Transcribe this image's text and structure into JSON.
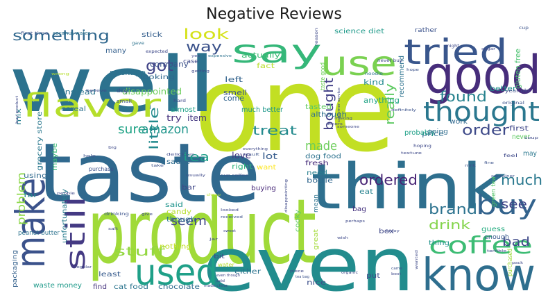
{
  "chart_data": {
    "type": "wordcloud",
    "title": "Negative Reviews",
    "colormap": "viridis",
    "background": "#ffffff",
    "words": [
      {
        "text": "product",
        "weight": 100,
        "color": "#a0da39"
      },
      {
        "text": "taste",
        "weight": 98,
        "color": "#30698e"
      },
      {
        "text": "one",
        "weight": 96,
        "color": "#c2df23"
      },
      {
        "text": "well",
        "weight": 95,
        "color": "#2c728e"
      },
      {
        "text": "think",
        "weight": 90,
        "color": "#2e6f8e"
      },
      {
        "text": "even",
        "weight": 85,
        "color": "#228c8d"
      },
      {
        "text": "good",
        "weight": 70,
        "color": "#472d7b"
      },
      {
        "text": "know",
        "weight": 58,
        "color": "#2e6e8e"
      },
      {
        "text": "make",
        "weight": 55,
        "color": "#3b528b"
      },
      {
        "text": "used",
        "weight": 52,
        "color": "#1fa088"
      },
      {
        "text": "tried",
        "weight": 50,
        "color": "#39568c"
      },
      {
        "text": "use",
        "weight": 50,
        "color": "#7ad151"
      },
      {
        "text": "say",
        "weight": 48,
        "color": "#35b779"
      },
      {
        "text": "flavor",
        "weight": 48,
        "color": "#b5de2b"
      },
      {
        "text": "thought",
        "weight": 42,
        "color": "#2a778e"
      },
      {
        "text": "still",
        "weight": 40,
        "color": "#443a83"
      },
      {
        "text": "buy",
        "weight": 38,
        "color": "#33638d"
      },
      {
        "text": "coffee",
        "weight": 36,
        "color": "#3dbc74"
      },
      {
        "text": "something",
        "weight": 24,
        "color": "#31688e"
      },
      {
        "text": "look",
        "weight": 24,
        "color": "#d5e21a"
      },
      {
        "text": "way",
        "weight": 22,
        "color": "#3b528b"
      },
      {
        "text": "got",
        "weight": 22,
        "color": "#414487"
      },
      {
        "text": "found",
        "weight": 22,
        "color": "#26828e"
      },
      {
        "text": "sure",
        "weight": 21,
        "color": "#20a386"
      },
      {
        "text": "amazon",
        "weight": 21,
        "color": "#1f958b"
      },
      {
        "text": "tea",
        "weight": 21,
        "color": "#1f9e89"
      },
      {
        "text": "treat",
        "weight": 21,
        "color": "#238a8d"
      },
      {
        "text": "order",
        "weight": 21,
        "color": "#3e4a89"
      },
      {
        "text": "bought",
        "weight": 20,
        "color": "#424086"
      },
      {
        "text": "made",
        "weight": 20,
        "color": "#6ccd5a"
      },
      {
        "text": "really",
        "weight": 20,
        "color": "#5ec962"
      },
      {
        "text": "ordered",
        "weight": 20,
        "color": "#482475"
      },
      {
        "text": "much",
        "weight": 20,
        "color": "#29788e"
      },
      {
        "text": "little",
        "weight": 20,
        "color": "#238a8d"
      },
      {
        "text": "seem",
        "weight": 19,
        "color": "#404688"
      },
      {
        "text": "brand",
        "weight": 19,
        "color": "#2c728e"
      },
      {
        "text": "see",
        "weight": 19,
        "color": "#404688"
      },
      {
        "text": "drink",
        "weight": 18,
        "color": "#84d44b"
      },
      {
        "text": "stuff",
        "weight": 18,
        "color": "#93d741"
      },
      {
        "text": "bad",
        "weight": 18,
        "color": "#3e4989"
      },
      {
        "text": "problem",
        "weight": 16,
        "color": "#8bd646"
      },
      {
        "text": "love",
        "weight": 13,
        "color": "#453882"
      },
      {
        "text": "lot",
        "weight": 12,
        "color": "#365c8d"
      },
      {
        "text": "disappointed",
        "weight": 12,
        "color": "#6ccd5a"
      },
      {
        "text": "item",
        "weight": 12,
        "color": "#453882"
      },
      {
        "text": "try",
        "weight": 12,
        "color": "#46327e"
      },
      {
        "text": "company",
        "weight": 11,
        "color": "#3b528b"
      },
      {
        "text": "package",
        "weight": 11,
        "color": "#2d718e"
      },
      {
        "text": "instead",
        "weight": 11,
        "color": "#2b758e"
      },
      {
        "text": "actually",
        "weight": 11,
        "color": "#3dbc74"
      },
      {
        "text": "left",
        "weight": 11,
        "color": "#33638d"
      },
      {
        "text": "smell",
        "weight": 11,
        "color": "#3b528b"
      },
      {
        "text": "come",
        "weight": 11,
        "color": "#32648e"
      },
      {
        "text": "fact",
        "weight": 10,
        "color": "#b8de29"
      },
      {
        "text": "anything",
        "weight": 11,
        "color": "#20a386"
      },
      {
        "text": "kind",
        "weight": 11,
        "color": "#23898e"
      },
      {
        "text": "recommend",
        "weight": 10,
        "color": "#2c728e"
      },
      {
        "text": "better",
        "weight": 10,
        "color": "#20928c"
      },
      {
        "text": "gluten free",
        "weight": 11,
        "color": "#48c16e"
      },
      {
        "text": "science diet",
        "weight": 10,
        "color": "#1f9a8a"
      },
      {
        "text": "rather",
        "weight": 9,
        "color": "#3b528b"
      },
      {
        "text": "stick",
        "weight": 10,
        "color": "#355f8d"
      },
      {
        "text": "many",
        "weight": 10,
        "color": "#34608d"
      },
      {
        "text": "looking",
        "weight": 10,
        "color": "#31688e"
      },
      {
        "text": "case",
        "weight": 9,
        "color": "#3e4a89"
      },
      {
        "text": "much better",
        "weight": 10,
        "color": "#1f988b"
      },
      {
        "text": "taste good",
        "weight": 9,
        "color": "#6ece58"
      },
      {
        "text": "grocery store",
        "weight": 10,
        "color": "#2a788e"
      },
      {
        "text": "cereal",
        "weight": 10,
        "color": "#2d708e"
      },
      {
        "text": "almost",
        "weight": 10,
        "color": "#1fa187"
      },
      {
        "text": "mix",
        "weight": 10,
        "color": "#277f8e"
      },
      {
        "text": "maybe",
        "weight": 10,
        "color": "#3aba76"
      },
      {
        "text": "using",
        "weight": 10,
        "color": "#306a8e"
      },
      {
        "text": "far",
        "weight": 10,
        "color": "#23898e"
      },
      {
        "text": "unfortunately",
        "weight": 10,
        "color": "#287d8e"
      },
      {
        "text": "though",
        "weight": 10,
        "color": "#2a768e"
      },
      {
        "text": "said",
        "weight": 10,
        "color": "#1f948c"
      },
      {
        "text": "candy",
        "weight": 10,
        "color": "#b5de2b"
      },
      {
        "text": "nothing",
        "weight": 10,
        "color": "#c0df25"
      },
      {
        "text": "sauce",
        "weight": 10,
        "color": "#2f6b8e"
      },
      {
        "text": "right",
        "weight": 10,
        "color": "#2fb47c"
      },
      {
        "text": "want",
        "weight": 10,
        "color": "#fde725"
      },
      {
        "text": "bar",
        "weight": 10,
        "color": "#3f4788"
      },
      {
        "text": "buying",
        "weight": 10,
        "color": "#482979"
      },
      {
        "text": "dog food",
        "weight": 10,
        "color": "#2c728e"
      },
      {
        "text": "tasted",
        "weight": 10,
        "color": "#5ec962"
      },
      {
        "text": "although",
        "weight": 10,
        "color": "#2e6f8e"
      },
      {
        "text": "fresh",
        "weight": 10,
        "color": "#472c7a"
      },
      {
        "text": "need",
        "weight": 10,
        "color": "#277f8e"
      },
      {
        "text": "bottle",
        "weight": 10,
        "color": "#31678e"
      },
      {
        "text": "cooky",
        "weight": 10,
        "color": "#5ec962"
      },
      {
        "text": "mean",
        "weight": 9,
        "color": "#2c728e"
      },
      {
        "text": "eat",
        "weight": 10,
        "color": "#26828e"
      },
      {
        "text": "bag",
        "weight": 10,
        "color": "#46337f"
      },
      {
        "text": "box",
        "weight": 10,
        "color": "#3f4788"
      },
      {
        "text": "great",
        "weight": 9,
        "color": "#a2da37"
      },
      {
        "text": "thing",
        "weight": 10,
        "color": "#20928c"
      },
      {
        "text": "guess",
        "weight": 10,
        "color": "#26ad81"
      },
      {
        "text": "enough",
        "weight": 9,
        "color": "#375a8c"
      },
      {
        "text": "purchased",
        "weight": 9,
        "color": "#9dd93b"
      },
      {
        "text": "work",
        "weight": 10,
        "color": "#31688e"
      },
      {
        "text": "price",
        "weight": 10,
        "color": "#2e6e8e"
      },
      {
        "text": "probably",
        "weight": 10,
        "color": "#1fa088"
      },
      {
        "text": "first",
        "weight": 10,
        "color": "#3f4788"
      },
      {
        "text": "never",
        "weight": 10,
        "color": "#5ec962"
      },
      {
        "text": "may",
        "weight": 10,
        "color": "#2a778e"
      },
      {
        "text": "green tea",
        "weight": 9,
        "color": "#52c569"
      },
      {
        "text": "going",
        "weight": 9,
        "color": "#2f6c8e"
      },
      {
        "text": "either",
        "weight": 10,
        "color": "#2c728e"
      },
      {
        "text": "put",
        "weight": 10,
        "color": "#3e4c8a"
      },
      {
        "text": "nice",
        "weight": 10,
        "color": "#3c508b"
      },
      {
        "text": "least",
        "weight": 10,
        "color": "#375b8d"
      },
      {
        "text": "waste money",
        "weight": 10,
        "color": "#1f9a8a"
      },
      {
        "text": "find",
        "weight": 10,
        "color": "#46327e"
      },
      {
        "text": "cat food",
        "weight": 10,
        "color": "#2b748e"
      },
      {
        "text": "chocolate",
        "weight": 10,
        "color": "#2f6c8e"
      },
      {
        "text": "bit",
        "weight": 9,
        "color": "#3e4a89"
      },
      {
        "text": "packaging",
        "weight": 9,
        "color": "#34618d"
      },
      {
        "text": "peanut butter",
        "weight": 8,
        "color": "#2c728e"
      },
      {
        "text": "purchase",
        "weight": 8,
        "color": "#3b528b"
      },
      {
        "text": "water",
        "weight": 8,
        "color": "#b5de2b"
      },
      {
        "text": "dog",
        "weight": 7,
        "color": "#3e4989"
      },
      {
        "text": "coconut water",
        "weight": 7,
        "color": "#2c728e"
      },
      {
        "text": "first time",
        "weight": 6,
        "color": "#3b528b"
      },
      {
        "text": "gave",
        "weight": 6,
        "color": "#2c728e"
      },
      {
        "text": "small",
        "weight": 7,
        "color": "#3b528b"
      },
      {
        "text": "expected",
        "weight": 6,
        "color": "#3e4989"
      },
      {
        "text": "yes",
        "weight": 5,
        "color": "#3e4989"
      },
      {
        "text": "expensive",
        "weight": 5,
        "color": "#2c728e"
      },
      {
        "text": "getting",
        "weight": 5,
        "color": "#3e4989"
      },
      {
        "text": "noodle",
        "weight": 6,
        "color": "#2c728e"
      },
      {
        "text": "reason",
        "weight": 6,
        "color": "#3e4989"
      },
      {
        "text": "cup",
        "weight": 6,
        "color": "#3b528b"
      },
      {
        "text": "might",
        "weight": 6,
        "color": "#3e4989"
      },
      {
        "text": "hope",
        "weight": 5,
        "color": "#3b528b"
      },
      {
        "text": "never buy",
        "weight": 6,
        "color": "#3e4989"
      },
      {
        "text": "year old",
        "weight": 7,
        "color": "#3e4989"
      },
      {
        "text": "original",
        "weight": 6,
        "color": "#3b528b"
      },
      {
        "text": "believe",
        "weight": 5,
        "color": "#3e4989"
      },
      {
        "text": "wrong",
        "weight": 5,
        "color": "#b5de2b"
      },
      {
        "text": "hard",
        "weight": 6,
        "color": "#3e4989"
      },
      {
        "text": "delicious",
        "weight": 5,
        "color": "#3e4989"
      },
      {
        "text": "customer service",
        "weight": 5,
        "color": "#3e4989"
      },
      {
        "text": "definitely",
        "weight": 5,
        "color": "#3b528b"
      },
      {
        "text": "others",
        "weight": 5,
        "color": "#3e4989"
      },
      {
        "text": "making",
        "weight": 5,
        "color": "#3b528b"
      },
      {
        "text": "someone",
        "weight": 5,
        "color": "#3e4989"
      },
      {
        "text": "hoping",
        "weight": 6,
        "color": "#3e4989"
      },
      {
        "text": "feel",
        "weight": 6,
        "color": "#3e4989"
      },
      {
        "text": "milk",
        "weight": 5,
        "color": "#3b528b"
      },
      {
        "text": "fine",
        "weight": 5,
        "color": "#3b528b"
      },
      {
        "text": "texture",
        "weight": 5,
        "color": "#3e4989"
      },
      {
        "text": "big",
        "weight": 5,
        "color": "#3e4989"
      },
      {
        "text": "help",
        "weight": 5,
        "color": "#3b528b"
      },
      {
        "text": "take",
        "weight": 5,
        "color": "#3b528b"
      },
      {
        "text": "usually",
        "weight": 5,
        "color": "#3e4989"
      },
      {
        "text": "cup coffee",
        "weight": 5,
        "color": "#3b528b"
      },
      {
        "text": "result",
        "weight": 5,
        "color": "#3b528b"
      },
      {
        "text": "everything",
        "weight": 5,
        "color": "#3e4989"
      },
      {
        "text": "disappointing",
        "weight": 5,
        "color": "#3e4989"
      },
      {
        "text": "container",
        "weight": 5,
        "color": "#3b528b"
      },
      {
        "text": "cheap",
        "weight": 5,
        "color": "#b5de2b"
      },
      {
        "text": "people",
        "weight": 5,
        "color": "#3e4989"
      },
      {
        "text": "drinking",
        "weight": 6,
        "color": "#3b528b"
      },
      {
        "text": "salt",
        "weight": 5,
        "color": "#3e4989"
      },
      {
        "text": "looked",
        "weight": 5,
        "color": "#3e4989"
      },
      {
        "text": "received",
        "weight": 5,
        "color": "#3b528b"
      },
      {
        "text": "sweet",
        "weight": 5,
        "color": "#3e4989"
      },
      {
        "text": "regular",
        "weight": 5,
        "color": "#3e4989"
      },
      {
        "text": "piece",
        "weight": 5,
        "color": "#3e4989"
      },
      {
        "text": "terrible",
        "weight": 5,
        "color": "#3e4989"
      },
      {
        "text": "pack",
        "weight": 5,
        "color": "#3e4989"
      },
      {
        "text": "wanted",
        "weight": 5,
        "color": "#3e4989"
      },
      {
        "text": "came",
        "weight": 5,
        "color": "#3b528b"
      },
      {
        "text": "best",
        "weight": 5,
        "color": "#3e4989"
      },
      {
        "text": "even though",
        "weight": 5,
        "color": "#3e4989"
      },
      {
        "text": "made china",
        "weight": 5,
        "color": "#3e4989"
      },
      {
        "text": "tea bag",
        "weight": 5,
        "color": "#3b528b"
      },
      {
        "text": "organic",
        "weight": 5,
        "color": "#3e4989"
      },
      {
        "text": "add",
        "weight": 5,
        "color": "#3e4989"
      },
      {
        "text": "give",
        "weight": 5,
        "color": "#3e4989"
      },
      {
        "text": "enjoy",
        "weight": 5,
        "color": "#3e4989"
      },
      {
        "text": "perhaps",
        "weight": 5,
        "color": "#3e4989"
      },
      {
        "text": "wish",
        "weight": 5,
        "color": "#3e4989"
      },
      {
        "text": "jar",
        "weight": 5,
        "color": "#3e4989"
      },
      {
        "text": "sugar",
        "weight": 5,
        "color": "#3e4989"
      },
      {
        "text": "soup",
        "weight": 5,
        "color": "#3e4989"
      },
      {
        "text": "buy product",
        "weight": 5,
        "color": "#3e4989"
      }
    ]
  }
}
